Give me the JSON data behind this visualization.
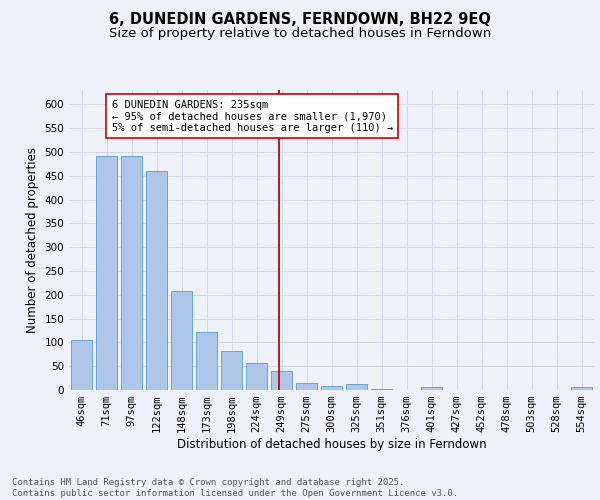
{
  "title": "6, DUNEDIN GARDENS, FERNDOWN, BH22 9EQ",
  "subtitle": "Size of property relative to detached houses in Ferndown",
  "xlabel": "Distribution of detached houses by size in Ferndown",
  "ylabel": "Number of detached properties",
  "categories": [
    "46sqm",
    "71sqm",
    "97sqm",
    "122sqm",
    "148sqm",
    "173sqm",
    "198sqm",
    "224sqm",
    "249sqm",
    "275sqm",
    "300sqm",
    "325sqm",
    "351sqm",
    "376sqm",
    "401sqm",
    "427sqm",
    "452sqm",
    "478sqm",
    "503sqm",
    "528sqm",
    "554sqm"
  ],
  "values": [
    105,
    492,
    492,
    460,
    207,
    122,
    82,
    57,
    40,
    15,
    9,
    12,
    3,
    0,
    6,
    0,
    0,
    0,
    0,
    0,
    6
  ],
  "bar_color": "#aec6e8",
  "bar_edge_color": "#5b9bd5",
  "grid_color": "#d0d8e8",
  "background_color": "#eef2f8",
  "vline_color": "#cc0000",
  "annotation_text": "6 DUNEDIN GARDENS: 235sqm\n← 95% of detached houses are smaller (1,970)\n5% of semi-detached houses are larger (110) →",
  "annotation_box_color": "#cc0000",
  "footer_text": "Contains HM Land Registry data © Crown copyright and database right 2025.\nContains public sector information licensed under the Open Government Licence v3.0.",
  "ylim": [
    0,
    630
  ],
  "yticks": [
    0,
    50,
    100,
    150,
    200,
    250,
    300,
    350,
    400,
    450,
    500,
    550,
    600
  ],
  "title_fontsize": 10.5,
  "subtitle_fontsize": 9.5,
  "axis_label_fontsize": 8.5,
  "tick_fontsize": 7.5,
  "annotation_fontsize": 7.5,
  "footer_fontsize": 6.5
}
